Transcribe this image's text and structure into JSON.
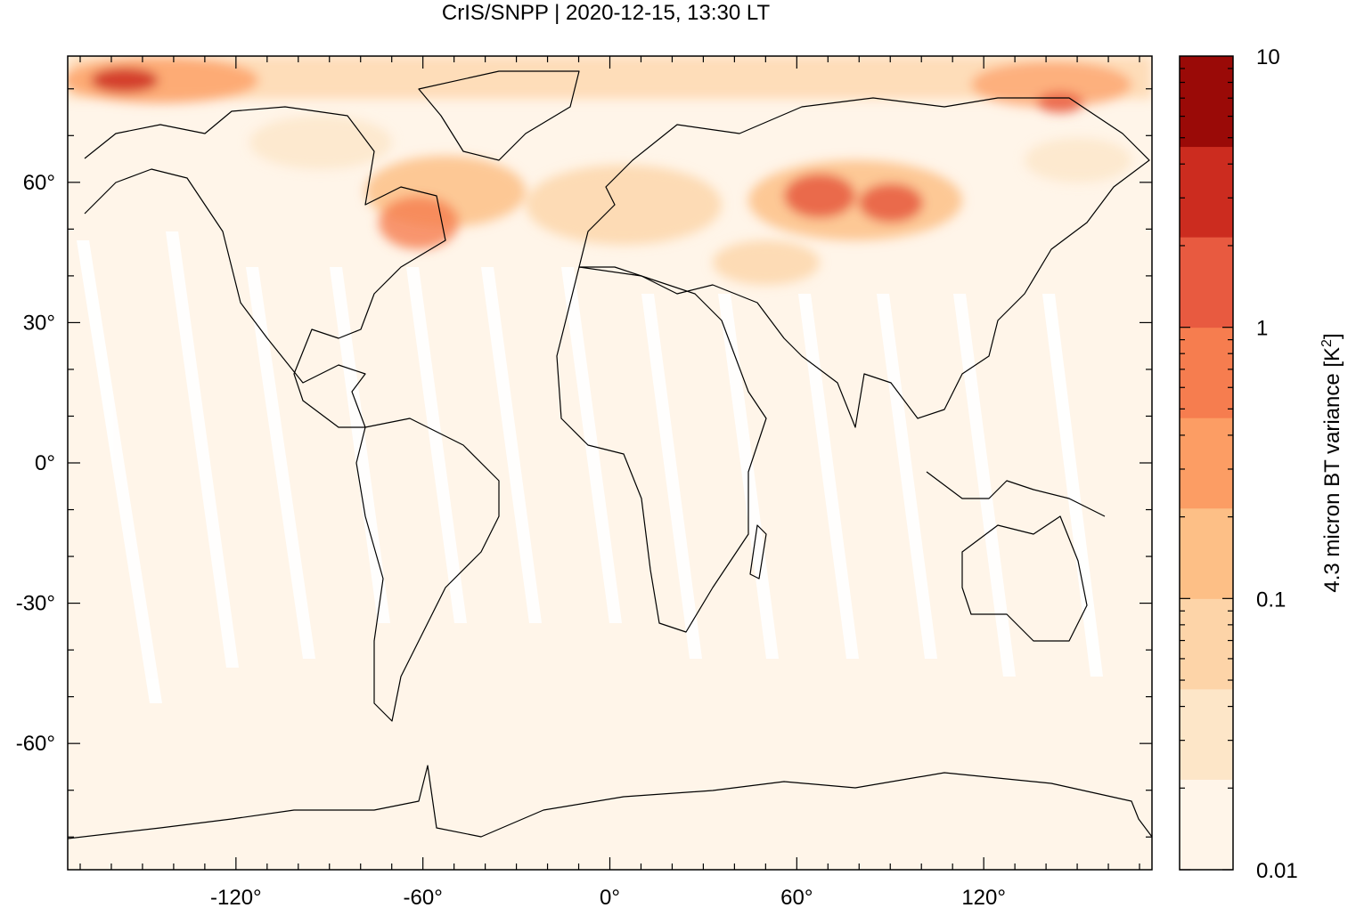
{
  "title": "CrIS/SNPP | 2020-12-15, 13:30 LT",
  "colorbar": {
    "label_main": "4.3 micron BT variance [K",
    "label_sup": "2",
    "label_end": "]",
    "scale": "log",
    "range": [
      0.01,
      10
    ],
    "tick_labels": [
      "10",
      "1",
      "0.1",
      "0.01"
    ],
    "tick_values": [
      10,
      1,
      0.1,
      0.01
    ],
    "levels": 9,
    "colors": [
      "#fff5e9",
      "#fde6c8",
      "#fdd4a8",
      "#fdbf86",
      "#fc9d64",
      "#f67d4f",
      "#e85a40",
      "#cc2c1f",
      "#9a0a07"
    ]
  },
  "map": {
    "projection": "equirectangular",
    "lon_range": [
      -174,
      174
    ],
    "lat_range": [
      -87,
      87
    ],
    "lon_tick_labels": [
      "-120°",
      "-60°",
      "0°",
      "60°",
      "120°"
    ],
    "lon_ticks": [
      -120,
      -60,
      0,
      60,
      120
    ],
    "lat_tick_labels": [
      "60°",
      "30°",
      "0°",
      "-30°",
      "-60°"
    ],
    "lat_ticks": [
      60,
      30,
      0,
      -30,
      -60
    ],
    "background_color": "#fff5e9",
    "gap_color": "#ffffff",
    "coastline_color": "#000000"
  }
}
